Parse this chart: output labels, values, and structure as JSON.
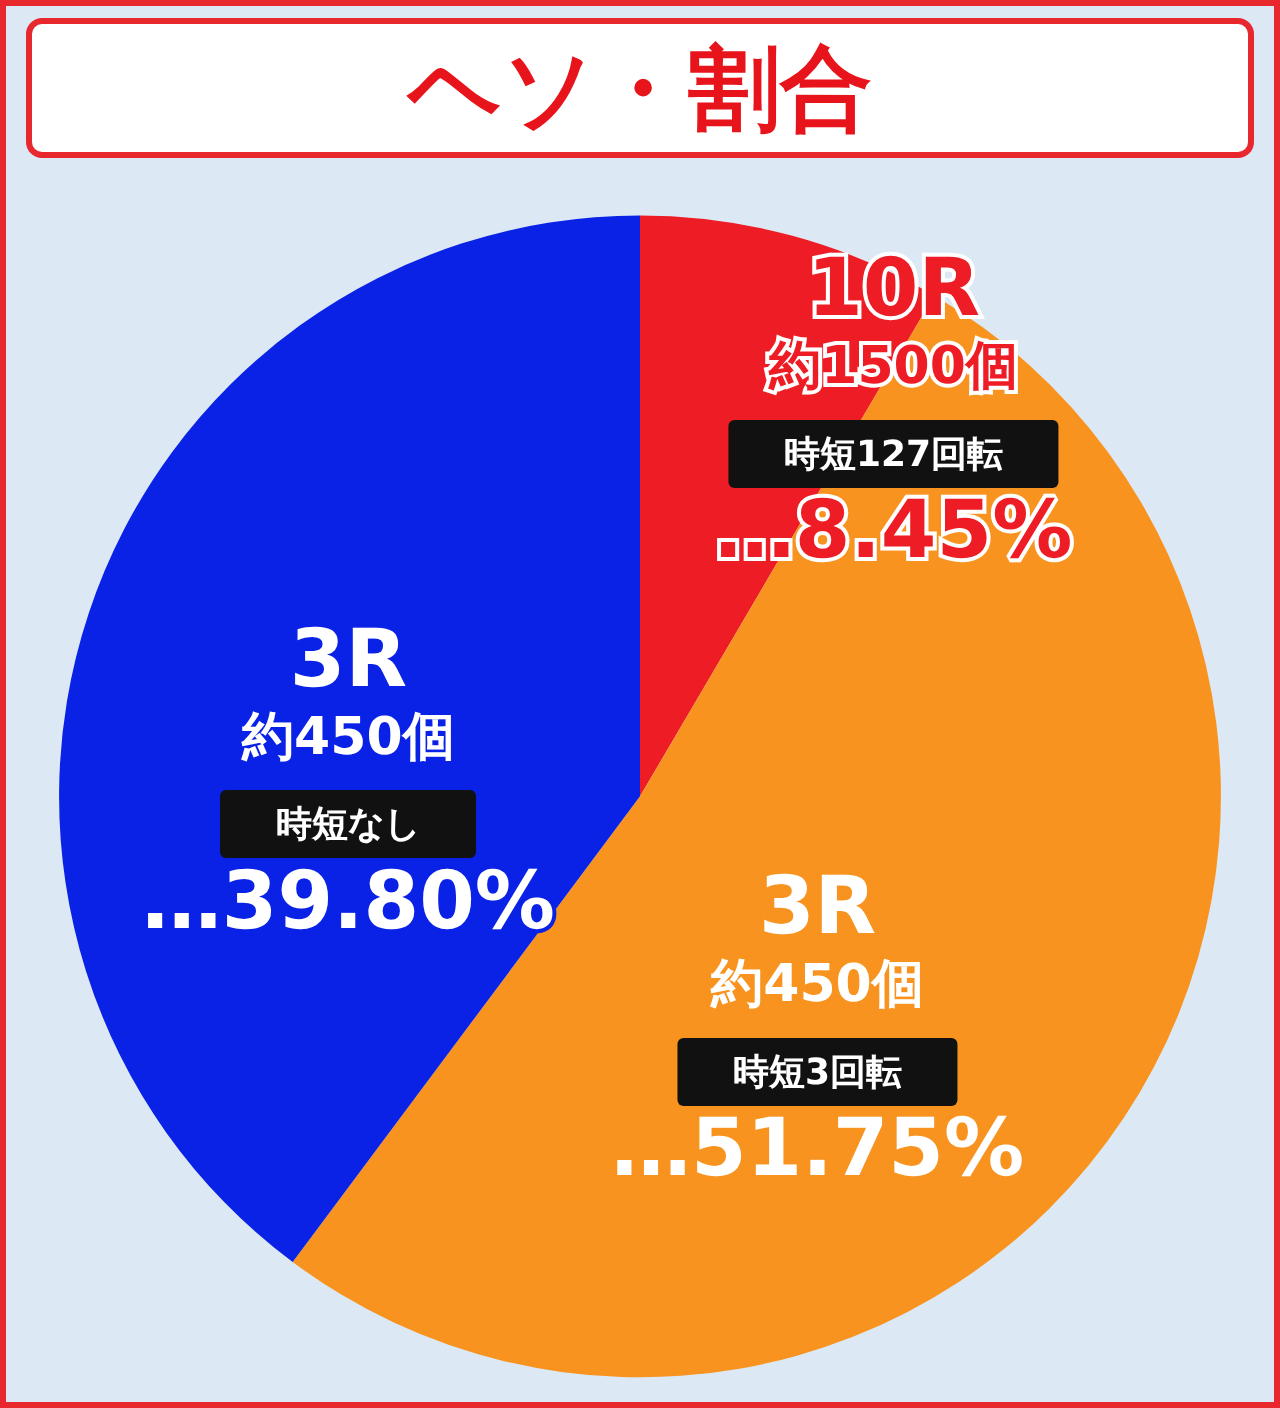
{
  "chart_data": {
    "type": "pie",
    "title": "ヘソ・割合",
    "categories": [
      "10R\n約1500個",
      "3R\n約450個",
      "3R\n約450個"
    ],
    "values": [
      8.45,
      51.75,
      39.8
    ],
    "colors": [
      "#ee1c25",
      "#f7931e",
      "#0a22e6"
    ],
    "value_labels": [
      "…8.45%",
      "…51.75%",
      "…39.80%"
    ],
    "annotations": [
      "時短127回転",
      "時短3回転",
      "時短なし"
    ],
    "legend": false
  }
}
